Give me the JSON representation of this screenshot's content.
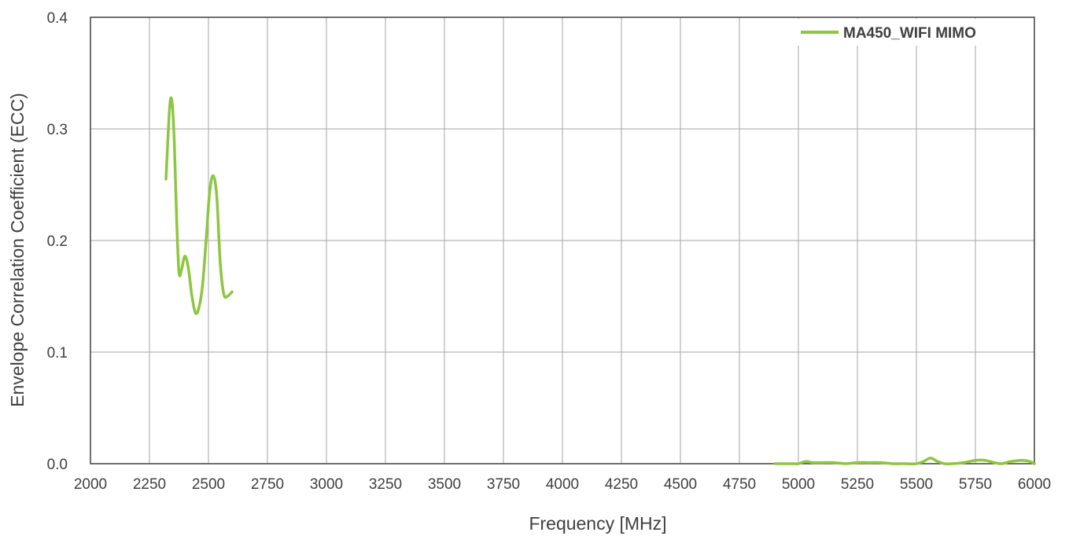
{
  "chart_data": {
    "type": "line",
    "title": "",
    "xlabel": "Frequency [MHz]",
    "ylabel": "Envelope Correlation Coefficient (ECC)",
    "xlim": [
      2000,
      6000
    ],
    "ylim": [
      0,
      0.4
    ],
    "x_ticks": [
      "2000",
      "2250",
      "2500",
      "2750",
      "3000",
      "3250",
      "3500",
      "3750",
      "4000",
      "4250",
      "4500",
      "4750",
      "5000",
      "5250",
      "5500",
      "5750",
      "6000"
    ],
    "y_ticks": [
      "0.0",
      "0.1",
      "0.2",
      "0.3",
      "0.4"
    ],
    "grid": true,
    "legend_position": "top-right",
    "colors": {
      "series": "#8dc63f",
      "grid": "#a6a6a6",
      "axis": "#404040",
      "text": "#404040"
    },
    "series": [
      {
        "name": "MA450_WIFI MIMO",
        "segments": [
          [
            [
              2320,
              0.255
            ],
            [
              2335,
              0.318
            ],
            [
              2345,
              0.325
            ],
            [
              2355,
              0.29
            ],
            [
              2365,
              0.22
            ],
            [
              2375,
              0.172
            ],
            [
              2385,
              0.173
            ],
            [
              2400,
              0.186
            ],
            [
              2415,
              0.175
            ],
            [
              2430,
              0.15
            ],
            [
              2445,
              0.135
            ],
            [
              2460,
              0.14
            ],
            [
              2475,
              0.16
            ],
            [
              2490,
              0.2
            ],
            [
              2505,
              0.243
            ],
            [
              2520,
              0.258
            ],
            [
              2535,
              0.24
            ],
            [
              2550,
              0.18
            ],
            [
              2565,
              0.152
            ],
            [
              2580,
              0.15
            ],
            [
              2600,
              0.154
            ]
          ],
          [
            [
              4900,
              0.0
            ],
            [
              4975,
              0.0
            ],
            [
              5000,
              0.0
            ],
            [
              5030,
              0.002
            ],
            [
              5060,
              0.001
            ],
            [
              5100,
              0.001
            ],
            [
              5150,
              0.001
            ],
            [
              5200,
              0.0
            ],
            [
              5250,
              0.001
            ],
            [
              5300,
              0.001
            ],
            [
              5350,
              0.001
            ],
            [
              5400,
              0.0
            ],
            [
              5450,
              0.0
            ],
            [
              5500,
              0.0
            ],
            [
              5530,
              0.002
            ],
            [
              5560,
              0.005
            ],
            [
              5590,
              0.002
            ],
            [
              5620,
              0.0
            ],
            [
              5650,
              0.0
            ],
            [
              5700,
              0.001
            ],
            [
              5750,
              0.003
            ],
            [
              5790,
              0.003
            ],
            [
              5830,
              0.001
            ],
            [
              5860,
              0.0
            ],
            [
              5900,
              0.002
            ],
            [
              5950,
              0.003
            ],
            [
              5980,
              0.002
            ],
            [
              6000,
              0.0
            ]
          ]
        ]
      }
    ]
  }
}
